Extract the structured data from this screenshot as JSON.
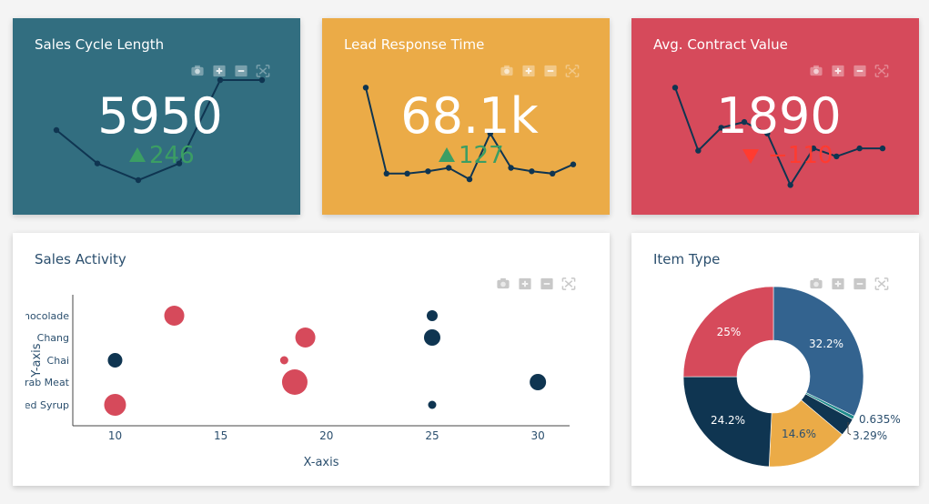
{
  "kpis": [
    {
      "title": "Sales Cycle Length",
      "value": "5950",
      "delta": "246",
      "delta_dir": "up",
      "bg": "#326e80",
      "spark": [
        5,
        3,
        2,
        3,
        8,
        8,
        8
      ]
    },
    {
      "title": "Lead Response Time",
      "value": "68.1k",
      "delta": "127",
      "delta_dir": "up",
      "bg": "#ebab47",
      "spark": [
        95,
        20,
        20,
        22,
        25,
        15,
        55,
        25,
        22,
        20,
        28
      ]
    },
    {
      "title": "Avg. Contract Value",
      "value": "1890",
      "delta": "−110",
      "delta_dir": "down",
      "bg": "#d64a5b",
      "spark": [
        95,
        40,
        60,
        65,
        55,
        10,
        42,
        35,
        42,
        42
      ]
    }
  ],
  "colors": {
    "up": "#3b9e64",
    "down": "#ff3b30",
    "line": "#0f3551",
    "red": "#d64a5b",
    "navy": "#0f3551",
    "orange": "#ebab47",
    "blue": "#33638f",
    "teal": "#1f8b8c"
  },
  "modebar_icons": [
    "camera-icon",
    "zoom-in-icon",
    "zoom-out-icon",
    "autoscale-icon"
  ],
  "scatter": {
    "title": "Sales Activity",
    "chart_data": {
      "type": "scatter",
      "xlabel": "X-axis",
      "ylabel": "Y-axis",
      "x_ticks": [
        10,
        15,
        20,
        25,
        30
      ],
      "y_categories": [
        "Maple Syrup",
        "Crab Meat",
        "Chai",
        "Chang",
        "Chocolade"
      ],
      "y_tick_labels": [
        "ed Syrup",
        "rab Meat",
        "Chai",
        "Chang",
        "nocolade"
      ],
      "xlim": [
        8,
        31.5
      ],
      "points": [
        {
          "x": 12.8,
          "y": "Chocolade",
          "size": 22,
          "color": "red"
        },
        {
          "x": 25,
          "y": "Chocolade",
          "size": 12,
          "color": "navy"
        },
        {
          "x": 19,
          "y": "Chang",
          "size": 22,
          "color": "red"
        },
        {
          "x": 25,
          "y": "Chang",
          "size": 18,
          "color": "navy"
        },
        {
          "x": 10,
          "y": "Chai",
          "size": 16,
          "color": "navy"
        },
        {
          "x": 18,
          "y": "Chai",
          "size": 9,
          "color": "red"
        },
        {
          "x": 18.5,
          "y": "Crab Meat",
          "size": 28,
          "color": "red"
        },
        {
          "x": 30,
          "y": "Crab Meat",
          "size": 18,
          "color": "navy"
        },
        {
          "x": 10,
          "y": "Maple Syrup",
          "size": 24,
          "color": "red"
        },
        {
          "x": 25,
          "y": "Maple Syrup",
          "size": 9,
          "color": "navy"
        }
      ]
    }
  },
  "pie": {
    "title": "Item Type",
    "chart_data": {
      "type": "pie",
      "hole": true,
      "slices": [
        {
          "value": 32.2,
          "label": "32.2%",
          "color": "blue"
        },
        {
          "value": 0.635,
          "label": "0.635%",
          "color": "teal"
        },
        {
          "value": 3.29,
          "label": "3.29%",
          "color": "navy"
        },
        {
          "value": 14.6,
          "label": "14.6%",
          "color": "orange"
        },
        {
          "value": 24.2,
          "label": "24.2%",
          "color": "navy"
        },
        {
          "value": 25,
          "label": "25%",
          "color": "red"
        }
      ]
    }
  }
}
